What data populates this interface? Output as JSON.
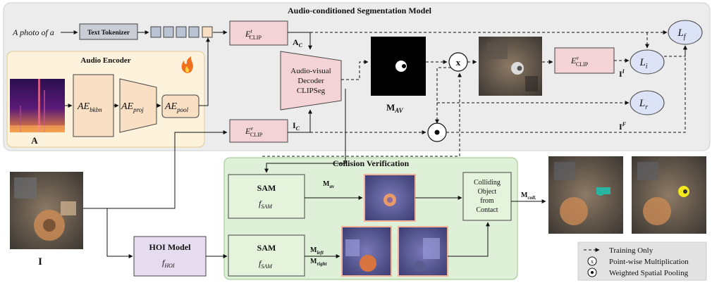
{
  "title": "Audio-conditioned Segmentation Model",
  "input_text": "A photo of a",
  "text_tokenizer": "Text Tokenizer",
  "clip_text_encoder": {
    "base": "E",
    "sup": "t",
    "sub": "CLIP"
  },
  "clip_visual_encoder": {
    "base": "E",
    "sup": "v",
    "sub": "CLIP"
  },
  "clip_visual_encoder_2": {
    "base": "E",
    "sup": "v",
    "sub": "CLIP"
  },
  "audio_encoder": {
    "title": "Audio Encoder",
    "fire_icon": "fire-icon",
    "blocks": [
      {
        "base": "AE",
        "sub": "bkbn"
      },
      {
        "base": "AE",
        "sub": "proj"
      },
      {
        "base": "AE",
        "sub": "pool"
      }
    ],
    "input_label": "A"
  },
  "decoder": {
    "line1": "Audio-visual",
    "line2": "Decoder",
    "line3": "CLIPSeg"
  },
  "labels": {
    "a_c": {
      "base": "A",
      "sub": "C"
    },
    "i_c": {
      "base": "I",
      "sub": "C"
    },
    "m_av": {
      "base": "M",
      "sub": "AV"
    },
    "i_i": {
      "base": "I",
      "sup": "I"
    },
    "i_f": {
      "base": "I",
      "sup": "F"
    },
    "input_image": "I"
  },
  "losses": [
    {
      "base": "L",
      "sub": "f"
    },
    {
      "base": "L",
      "sub": "i"
    },
    {
      "base": "L",
      "sub": "r"
    }
  ],
  "ops": {
    "multiply": "x",
    "pool": "•"
  },
  "collision": {
    "title": "Collision Verification",
    "sam_label": "SAM",
    "sam_fn": {
      "base": "f",
      "sub": "SAM"
    },
    "m_av": {
      "base": "M",
      "sub": "av"
    },
    "m_left": {
      "base": "M",
      "sub": "left"
    },
    "m_right": {
      "base": "M",
      "sub": "right"
    },
    "colliding": [
      "Colliding",
      "Object",
      "from",
      "Contact"
    ],
    "m_coll": {
      "base": "M",
      "sub": "coll."
    }
  },
  "hoi": {
    "title": "HOI Model",
    "fn": {
      "base": "f",
      "sub": "HOI"
    }
  },
  "legend": [
    {
      "symbol": "dashed-arrow",
      "label": "Training Only"
    },
    {
      "symbol": "x",
      "label": "Point-wise Multiplication"
    },
    {
      "symbol": "•",
      "label": "Weighted Spatial Pooling"
    }
  ],
  "colors": {
    "panel_bg": "#ececec",
    "audio_bg": "#fdf2dc",
    "pink": "#f3d3d6",
    "peach": "#f9dfc3",
    "purple": "#e6dcf0",
    "green_bg": "#dff0d8",
    "green_box": "#e5f2dc",
    "loss": "#dde3f6",
    "gray": "#c8cdd6"
  }
}
